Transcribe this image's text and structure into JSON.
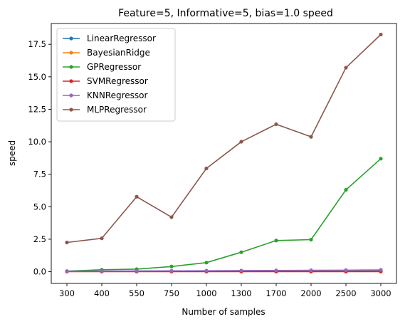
{
  "chart_data": {
    "type": "line",
    "title": "Feature=5, Informative=5, bias=1.0 speed",
    "xlabel": "Number of samples",
    "ylabel": "speed",
    "categories": [
      "300",
      "400",
      "550",
      "750",
      "1000",
      "1300",
      "1700",
      "2000",
      "2500",
      "3000"
    ],
    "ylim": [
      -0.9,
      19.1
    ],
    "yticks": [
      "0.0",
      "2.5",
      "5.0",
      "7.5",
      "10.0",
      "12.5",
      "15.0",
      "17.5"
    ],
    "grid": false,
    "legend_position": "upper-left",
    "series": [
      {
        "name": "LinearRegressor",
        "color": "#1f77b4",
        "values": [
          0.03,
          0.03,
          0.03,
          0.03,
          0.03,
          0.04,
          0.04,
          0.05,
          0.06,
          0.08
        ]
      },
      {
        "name": "BayesianRidge",
        "color": "#ff7f0e",
        "values": [
          0.02,
          0.02,
          0.02,
          0.02,
          0.02,
          0.02,
          0.02,
          0.02,
          0.02,
          0.03
        ]
      },
      {
        "name": "GPRegressor",
        "color": "#2ca02c",
        "values": [
          0.05,
          0.15,
          0.2,
          0.4,
          0.7,
          1.5,
          2.4,
          2.47,
          6.3,
          8.7
        ]
      },
      {
        "name": "SVMRegressor",
        "color": "#d62728",
        "values": [
          0.01,
          0.01,
          0.01,
          0.01,
          0.01,
          0.01,
          0.01,
          0.01,
          0.01,
          0.01
        ]
      },
      {
        "name": "KNNRegressor",
        "color": "#9467bd",
        "values": [
          0.04,
          0.05,
          0.06,
          0.07,
          0.08,
          0.09,
          0.1,
          0.11,
          0.12,
          0.14
        ]
      },
      {
        "name": "MLPRegressor",
        "color": "#8c564b",
        "values": [
          2.25,
          2.57,
          5.77,
          4.2,
          7.95,
          10.0,
          11.35,
          10.38,
          15.7,
          18.25
        ]
      }
    ]
  }
}
